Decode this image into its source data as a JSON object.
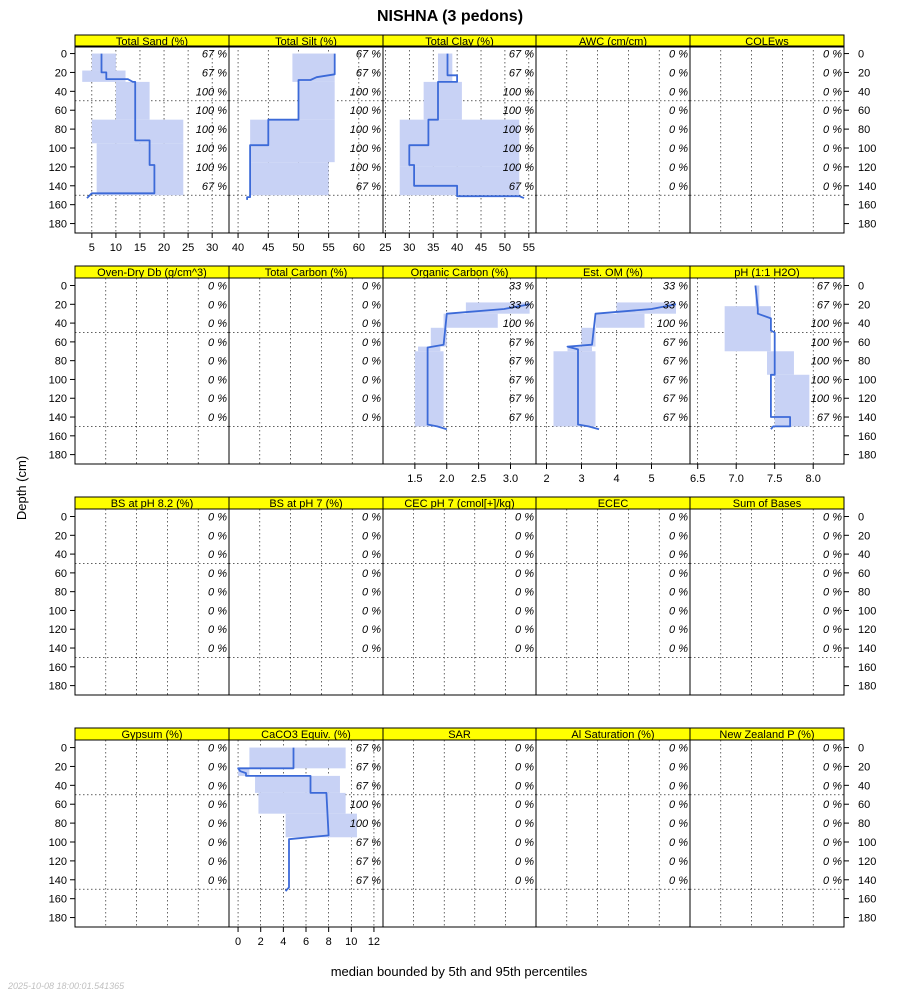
{
  "chart_data": {
    "type": "line",
    "title": "NISHNA (3 pedons)",
    "ylabel": "Depth (cm)",
    "xlabel": "median bounded by 5th and 95th percentiles",
    "timestamp": "2025-10-08 18:00:01.541365",
    "ylim": [
      190,
      -8
    ],
    "depth_ticks": [
      0,
      20,
      40,
      60,
      80,
      100,
      120,
      140,
      160,
      180
    ],
    "depth_ref_lines": [
      50,
      150
    ],
    "pct_depths": [
      0,
      20,
      40,
      60,
      80,
      100,
      120,
      140
    ],
    "colors": {
      "strip": "#ffff00",
      "band": "#c8d2f5",
      "median": "#3c6ad8",
      "grid": "#000000"
    },
    "panels": [
      {
        "name": "Total Sand (%)",
        "xlim": [
          1.5,
          33.5
        ],
        "xticks": [
          5,
          10,
          15,
          20,
          25,
          30
        ],
        "pct": [
          "67 %",
          "67 %",
          "100 %",
          "100 %",
          "100 %",
          "100 %",
          "100 %",
          "67 %"
        ],
        "band": [
          {
            "top": 0,
            "bottom": 18,
            "lo": 5,
            "hi": 10
          },
          {
            "top": 18,
            "bottom": 30,
            "lo": 3,
            "hi": 12
          },
          {
            "top": 30,
            "bottom": 70,
            "lo": 10,
            "hi": 17
          },
          {
            "top": 70,
            "bottom": 95,
            "lo": 5,
            "hi": 24
          },
          {
            "top": 95,
            "bottom": 150,
            "lo": 6,
            "hi": 24
          }
        ],
        "median": [
          {
            "depth": 0,
            "value": 7
          },
          {
            "depth": 20,
            "value": 7
          },
          {
            "depth": 20,
            "value": 8
          },
          {
            "depth": 27,
            "value": 8
          },
          {
            "depth": 27,
            "value": 12.5
          },
          {
            "depth": 30,
            "value": 13.5
          },
          {
            "depth": 30,
            "value": 14
          },
          {
            "depth": 92,
            "value": 14
          },
          {
            "depth": 92,
            "value": 17
          },
          {
            "depth": 118,
            "value": 17
          },
          {
            "depth": 118,
            "value": 18
          },
          {
            "depth": 148,
            "value": 18
          },
          {
            "depth": 148,
            "value": 5
          },
          {
            "depth": 153,
            "value": 4
          }
        ]
      },
      {
        "name": "Total Silt (%)",
        "xlim": [
          38.5,
          64
        ],
        "xticks": [
          40,
          45,
          50,
          55,
          60
        ],
        "pct": [
          "67 %",
          "67 %",
          "100 %",
          "100 %",
          "100 %",
          "100 %",
          "100 %",
          "67 %"
        ],
        "band": [
          {
            "top": 0,
            "bottom": 30,
            "lo": 49,
            "hi": 56
          },
          {
            "top": 30,
            "bottom": 70,
            "lo": 50,
            "hi": 56
          },
          {
            "top": 70,
            "bottom": 115,
            "lo": 42,
            "hi": 56
          },
          {
            "top": 115,
            "bottom": 150,
            "lo": 42,
            "hi": 55
          }
        ],
        "median": [
          {
            "depth": 0,
            "value": 56
          },
          {
            "depth": 22,
            "value": 56
          },
          {
            "depth": 25,
            "value": 53
          },
          {
            "depth": 28,
            "value": 52
          },
          {
            "depth": 28,
            "value": 50
          },
          {
            "depth": 70,
            "value": 50
          },
          {
            "depth": 70,
            "value": 45
          },
          {
            "depth": 97,
            "value": 45
          },
          {
            "depth": 97,
            "value": 42
          },
          {
            "depth": 152,
            "value": 42
          },
          {
            "depth": 152,
            "value": 41.5
          },
          {
            "depth": 155,
            "value": 41.5
          }
        ]
      },
      {
        "name": "Total Clay (%)",
        "xlim": [
          24.5,
          56.5
        ],
        "xticks": [
          25,
          30,
          35,
          40,
          45,
          50,
          55
        ],
        "pct": [
          "67 %",
          "67 %",
          "100 %",
          "100 %",
          "100 %",
          "100 %",
          "100 %",
          "67 %"
        ],
        "band": [
          {
            "top": 0,
            "bottom": 30,
            "lo": 36,
            "hi": 39
          },
          {
            "top": 30,
            "bottom": 70,
            "lo": 33,
            "hi": 41
          },
          {
            "top": 70,
            "bottom": 120,
            "lo": 28,
            "hi": 53
          },
          {
            "top": 120,
            "bottom": 150,
            "lo": 28,
            "hi": 53
          }
        ],
        "median": [
          {
            "depth": 0,
            "value": 38
          },
          {
            "depth": 23,
            "value": 38
          },
          {
            "depth": 23,
            "value": 40
          },
          {
            "depth": 30,
            "value": 40
          },
          {
            "depth": 30,
            "value": 36
          },
          {
            "depth": 70,
            "value": 36
          },
          {
            "depth": 70,
            "value": 34
          },
          {
            "depth": 97,
            "value": 34
          },
          {
            "depth": 97,
            "value": 30
          },
          {
            "depth": 118,
            "value": 30
          },
          {
            "depth": 118,
            "value": 31
          },
          {
            "depth": 140,
            "value": 31
          },
          {
            "depth": 140,
            "value": 40
          },
          {
            "depth": 151,
            "value": 40
          },
          {
            "depth": 151,
            "value": 53
          },
          {
            "depth": 153,
            "value": 54
          }
        ]
      },
      {
        "name": "AWC (cm/cm)",
        "xlim": [
          0,
          1
        ],
        "xticks": [],
        "pct": [
          "0 %",
          "0 %",
          "0 %",
          "0 %",
          "0 %",
          "0 %",
          "0 %",
          "0 %"
        ],
        "band": [],
        "median": []
      },
      {
        "name": "COLEws",
        "xlim": [
          0,
          1
        ],
        "xticks": [],
        "pct": [
          "0 %",
          "0 %",
          "0 %",
          "0 %",
          "0 %",
          "0 %",
          "0 %",
          "0 %"
        ],
        "band": [],
        "median": []
      },
      {
        "name": "Oven-Dry Db (g/cm^3)",
        "xlim": [
          0,
          1
        ],
        "xticks": [],
        "pct": [
          "0 %",
          "0 %",
          "0 %",
          "0 %",
          "0 %",
          "0 %",
          "0 %",
          "0 %"
        ],
        "band": [],
        "median": []
      },
      {
        "name": "Total Carbon (%)",
        "xlim": [
          0,
          1
        ],
        "xticks": [],
        "pct": [
          "0 %",
          "0 %",
          "0 %",
          "0 %",
          "0 %",
          "0 %",
          "0 %",
          "0 %"
        ],
        "band": [],
        "median": []
      },
      {
        "name": "Organic Carbon (%)",
        "xlim": [
          1.0,
          3.4
        ],
        "xticks": [
          1.5,
          2.0,
          2.5,
          3.0
        ],
        "xtick_labels": [
          "1.5",
          "2.0",
          "2.5",
          "3.0"
        ],
        "pct": [
          "33 %",
          "33 %",
          "100 %",
          "67 %",
          "67 %",
          "67 %",
          "67 %",
          "67 %"
        ],
        "band": [
          {
            "top": 18,
            "bottom": 30,
            "lo": 2.3,
            "hi": 3.3
          },
          {
            "top": 30,
            "bottom": 45,
            "lo": 1.95,
            "hi": 2.8
          },
          {
            "top": 45,
            "bottom": 65,
            "lo": 1.75,
            "hi": 2.0
          },
          {
            "top": 65,
            "bottom": 70,
            "lo": 1.55,
            "hi": 1.9
          },
          {
            "top": 70,
            "bottom": 150,
            "lo": 1.5,
            "hi": 1.95
          }
        ],
        "median": [
          {
            "depth": 20,
            "value": 3.3
          },
          {
            "depth": 25,
            "value": 2.9
          },
          {
            "depth": 30,
            "value": 2.0
          },
          {
            "depth": 63,
            "value": 1.95
          },
          {
            "depth": 66,
            "value": 1.7
          },
          {
            "depth": 148,
            "value": 1.7
          },
          {
            "depth": 150,
            "value": 1.85
          },
          {
            "depth": 153,
            "value": 2.0
          }
        ]
      },
      {
        "name": "Est. OM (%)",
        "xlim": [
          1.7,
          6.1
        ],
        "xticks": [
          2,
          3,
          4,
          5
        ],
        "pct": [
          "33 %",
          "33 %",
          "100 %",
          "67 %",
          "67 %",
          "67 %",
          "67 %",
          "67 %"
        ],
        "band": [
          {
            "top": 18,
            "bottom": 30,
            "lo": 4.0,
            "hi": 5.7
          },
          {
            "top": 30,
            "bottom": 45,
            "lo": 3.4,
            "hi": 4.8
          },
          {
            "top": 45,
            "bottom": 65,
            "lo": 3.0,
            "hi": 3.4
          },
          {
            "top": 65,
            "bottom": 70,
            "lo": 2.6,
            "hi": 3.3
          },
          {
            "top": 70,
            "bottom": 150,
            "lo": 2.2,
            "hi": 3.4
          }
        ],
        "median": [
          {
            "depth": 20,
            "value": 5.7
          },
          {
            "depth": 25,
            "value": 5.0
          },
          {
            "depth": 30,
            "value": 3.4
          },
          {
            "depth": 63,
            "value": 3.3
          },
          {
            "depth": 65,
            "value": 2.6
          },
          {
            "depth": 68,
            "value": 2.9
          },
          {
            "depth": 148,
            "value": 2.9
          },
          {
            "depth": 150,
            "value": 3.2
          },
          {
            "depth": 153,
            "value": 3.5
          }
        ]
      },
      {
        "name": "pH (1:1 H2O)",
        "xlim": [
          6.4,
          8.4
        ],
        "xticks": [
          6.5,
          7.0,
          7.5,
          8.0
        ],
        "xtick_labels": [
          "6.5",
          "7.0",
          "7.5",
          "8.0"
        ],
        "pct": [
          "67 %",
          "67 %",
          "100 %",
          "100 %",
          "100 %",
          "100 %",
          "100 %",
          "67 %"
        ],
        "band": [
          {
            "top": 0,
            "bottom": 22,
            "lo": 7.25,
            "hi": 7.3
          },
          {
            "top": 22,
            "bottom": 70,
            "lo": 6.85,
            "hi": 7.45
          },
          {
            "top": 70,
            "bottom": 95,
            "lo": 7.4,
            "hi": 7.75
          },
          {
            "top": 95,
            "bottom": 150,
            "lo": 7.5,
            "hi": 7.95
          }
        ],
        "median": [
          {
            "depth": 0,
            "value": 7.25
          },
          {
            "depth": 25,
            "value": 7.28
          },
          {
            "depth": 30,
            "value": 7.28
          },
          {
            "depth": 35,
            "value": 7.45
          },
          {
            "depth": 48,
            "value": 7.45
          },
          {
            "depth": 50,
            "value": 7.5
          },
          {
            "depth": 95,
            "value": 7.5
          },
          {
            "depth": 95,
            "value": 7.45
          },
          {
            "depth": 140,
            "value": 7.45
          },
          {
            "depth": 140,
            "value": 7.7
          },
          {
            "depth": 150,
            "value": 7.7
          },
          {
            "depth": 150,
            "value": 7.48
          },
          {
            "depth": 153,
            "value": 7.45
          }
        ]
      },
      {
        "name": "BS at pH 8.2 (%)",
        "xlim": [
          0,
          1
        ],
        "xticks": [],
        "pct": [
          "0 %",
          "0 %",
          "0 %",
          "0 %",
          "0 %",
          "0 %",
          "0 %",
          "0 %"
        ],
        "band": [],
        "median": []
      },
      {
        "name": "BS at pH 7 (%)",
        "xlim": [
          0,
          1
        ],
        "xticks": [],
        "pct": [
          "0 %",
          "0 %",
          "0 %",
          "0 %",
          "0 %",
          "0 %",
          "0 %",
          "0 %"
        ],
        "band": [],
        "median": []
      },
      {
        "name": "CEC pH 7 (cmol[+]/kg)",
        "xlim": [
          0,
          1
        ],
        "xticks": [],
        "pct": [
          "0 %",
          "0 %",
          "0 %",
          "0 %",
          "0 %",
          "0 %",
          "0 %",
          "0 %"
        ],
        "band": [],
        "median": []
      },
      {
        "name": "ECEC",
        "xlim": [
          0,
          1
        ],
        "xticks": [],
        "pct": [
          "0 %",
          "0 %",
          "0 %",
          "0 %",
          "0 %",
          "0 %",
          "0 %",
          "0 %"
        ],
        "band": [],
        "median": []
      },
      {
        "name": "Sum of Bases",
        "xlim": [
          0,
          1
        ],
        "xticks": [],
        "pct": [
          "0 %",
          "0 %",
          "0 %",
          "0 %",
          "0 %",
          "0 %",
          "0 %",
          "0 %"
        ],
        "band": [],
        "median": []
      },
      {
        "name": "Gypsum (%)",
        "xlim": [
          0,
          1
        ],
        "xticks": [],
        "pct": [
          "0 %",
          "0 %",
          "0 %",
          "0 %",
          "0 %",
          "0 %",
          "0 %",
          "0 %"
        ],
        "band": [],
        "median": []
      },
      {
        "name": "CaCO3 Equiv. (%)",
        "xlim": [
          -0.8,
          12.8
        ],
        "xticks": [
          0,
          2,
          4,
          6,
          8,
          10,
          12
        ],
        "pct": [
          "67 %",
          "67 %",
          "67 %",
          "100 %",
          "100 %",
          "67 %",
          "67 %",
          "67 %"
        ],
        "band": [
          {
            "top": 0,
            "bottom": 22,
            "lo": 1.0,
            "hi": 9.5
          },
          {
            "top": 22,
            "bottom": 30,
            "lo": 0,
            "hi": 1.0
          },
          {
            "top": 30,
            "bottom": 48,
            "lo": 1.5,
            "hi": 9.0
          },
          {
            "top": 48,
            "bottom": 70,
            "lo": 1.8,
            "hi": 9.5
          },
          {
            "top": 70,
            "bottom": 95,
            "lo": 4.2,
            "hi": 10.5
          }
        ],
        "median": [
          {
            "depth": 0,
            "value": 4.9
          },
          {
            "depth": 22,
            "value": 4.9
          },
          {
            "depth": 22,
            "value": 0
          },
          {
            "depth": 25,
            "value": 0.2
          },
          {
            "depth": 27,
            "value": 0.7
          },
          {
            "depth": 30,
            "value": 0.7
          },
          {
            "depth": 30,
            "value": 6.4
          },
          {
            "depth": 48,
            "value": 6.4
          },
          {
            "depth": 48,
            "value": 7.8
          },
          {
            "depth": 93,
            "value": 8.0
          },
          {
            "depth": 97,
            "value": 4.5
          },
          {
            "depth": 148,
            "value": 4.5
          },
          {
            "depth": 152,
            "value": 4.2
          }
        ]
      },
      {
        "name": "SAR",
        "xlim": [
          0,
          1
        ],
        "xticks": [],
        "pct": [
          "0 %",
          "0 %",
          "0 %",
          "0 %",
          "0 %",
          "0 %",
          "0 %",
          "0 %"
        ],
        "band": [],
        "median": []
      },
      {
        "name": "Al Saturation (%)",
        "xlim": [
          0,
          1
        ],
        "xticks": [],
        "pct": [
          "0 %",
          "0 %",
          "0 %",
          "0 %",
          "0 %",
          "0 %",
          "0 %",
          "0 %"
        ],
        "band": [],
        "median": []
      },
      {
        "name": "New Zealand P (%)",
        "xlim": [
          0,
          1
        ],
        "xticks": [],
        "pct": [
          "0 %",
          "0 %",
          "0 %",
          "0 %",
          "0 %",
          "0 %",
          "0 %",
          "0 %"
        ],
        "band": [],
        "median": []
      }
    ]
  }
}
